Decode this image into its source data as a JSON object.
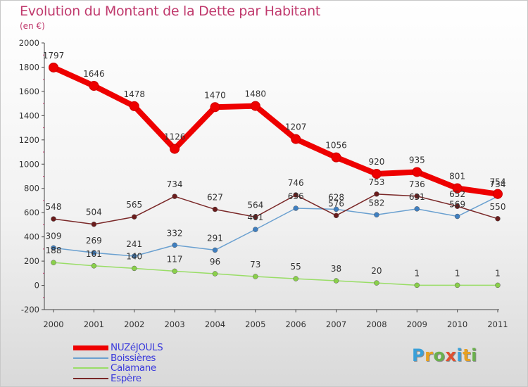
{
  "title": "Evolution du Montant de la Dette par Habitant",
  "unit": "(en €)",
  "logo": {
    "text": "Proxiti",
    "colors": [
      "#3aa0d8",
      "#e8a020",
      "#6ab04c",
      "#e05030",
      "#3aa0d8",
      "#e8a020",
      "#6ab04c"
    ]
  },
  "chart_data": {
    "type": "line",
    "title": "Evolution du Montant de la Dette par Habitant",
    "ylabel": "(en €)",
    "ylim": [
      -200,
      2000
    ],
    "yticks": [
      -200,
      0,
      200,
      400,
      600,
      800,
      1000,
      1200,
      1400,
      1600,
      1800,
      2000
    ],
    "x": [
      "2000",
      "2001",
      "2002",
      "2003",
      "2004",
      "2005",
      "2006",
      "2007",
      "2008",
      "2009",
      "2010",
      "2011"
    ],
    "grid": false,
    "legend": "bottom-left",
    "series": [
      {
        "name": "NUZéJOULS",
        "color": "#ee0000",
        "values": [
          1797,
          1646,
          1478,
          1126,
          1470,
          1480,
          1207,
          1056,
          920,
          935,
          801,
          754
        ]
      },
      {
        "name": "Boissières",
        "color": "#6aa0d0",
        "values": [
          309,
          269,
          241,
          332,
          291,
          461,
          636,
          628,
          582,
          631,
          569,
          734
        ]
      },
      {
        "name": "Calamane",
        "color": "#99dd66",
        "values": [
          188,
          161,
          140,
          117,
          96,
          73,
          55,
          38,
          20,
          1,
          1,
          1
        ]
      },
      {
        "name": "Espère",
        "color": "#7a2828",
        "values": [
          548,
          504,
          565,
          734,
          627,
          564,
          746,
          576,
          753,
          736,
          652,
          550
        ]
      }
    ]
  }
}
